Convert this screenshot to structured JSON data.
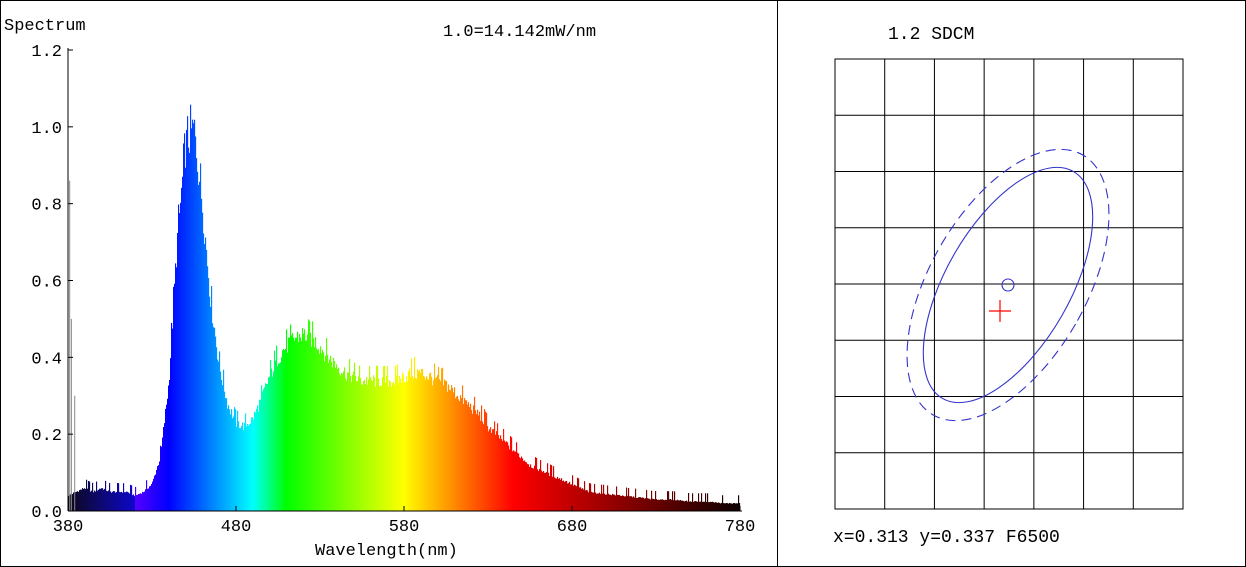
{
  "chart_data": [
    {
      "type": "area",
      "title": "Spectrum",
      "subtitle": "1.0=14.142mW/nm",
      "xlabel": "Wavelength(nm)",
      "ylabel": "",
      "xlim": [
        380,
        780
      ],
      "ylim": [
        0,
        1.2
      ],
      "x_ticks": [
        "380",
        "480",
        "580",
        "680",
        "780"
      ],
      "y_ticks": [
        "0.0",
        "0.2",
        "0.4",
        "0.6",
        "0.8",
        "1.0",
        "1.2"
      ],
      "x": [
        380,
        385,
        390,
        395,
        400,
        405,
        410,
        415,
        420,
        425,
        430,
        435,
        440,
        445,
        450,
        455,
        460,
        465,
        470,
        475,
        480,
        485,
        490,
        495,
        500,
        505,
        510,
        515,
        520,
        525,
        530,
        535,
        540,
        545,
        550,
        555,
        560,
        565,
        570,
        575,
        580,
        585,
        590,
        595,
        600,
        605,
        610,
        615,
        620,
        625,
        630,
        635,
        640,
        645,
        650,
        655,
        660,
        665,
        670,
        675,
        680,
        690,
        700,
        710,
        720,
        730,
        740,
        750,
        760,
        770,
        780
      ],
      "values": [
        0.04,
        0.05,
        0.06,
        0.05,
        0.06,
        0.05,
        0.05,
        0.05,
        0.04,
        0.05,
        0.07,
        0.14,
        0.33,
        0.7,
        0.95,
        1.0,
        0.8,
        0.55,
        0.38,
        0.28,
        0.23,
        0.22,
        0.24,
        0.29,
        0.35,
        0.4,
        0.43,
        0.45,
        0.46,
        0.45,
        0.43,
        0.4,
        0.38,
        0.36,
        0.35,
        0.34,
        0.34,
        0.34,
        0.34,
        0.34,
        0.35,
        0.36,
        0.36,
        0.35,
        0.34,
        0.33,
        0.31,
        0.29,
        0.27,
        0.25,
        0.22,
        0.2,
        0.18,
        0.16,
        0.14,
        0.12,
        0.11,
        0.1,
        0.09,
        0.08,
        0.07,
        0.05,
        0.045,
        0.04,
        0.035,
        0.03,
        0.03,
        0.025,
        0.025,
        0.02,
        0.02
      ],
      "noise_spikes": [
        {
          "x": 381,
          "value": 0.86
        },
        {
          "x": 382,
          "value": 0.5
        },
        {
          "x": 384,
          "value": 0.3
        }
      ],
      "fill": "spectral (wavelength-coloured)",
      "grid": false
    },
    {
      "type": "scatter",
      "title": "1.2 SDCM",
      "grid": true,
      "grid_cols": 7,
      "grid_rows": 8,
      "annotation": "x=0.313 y=0.337 F6500",
      "measured_point": {
        "x": 0.313,
        "y": 0.337,
        "marker": "cross",
        "color": "#ff0000"
      },
      "reference": "F6500",
      "reference_marker": "circle",
      "ellipse_color": "#3333cc",
      "ellipses": [
        {
          "style": "solid"
        },
        {
          "style": "dashed"
        }
      ]
    }
  ]
}
